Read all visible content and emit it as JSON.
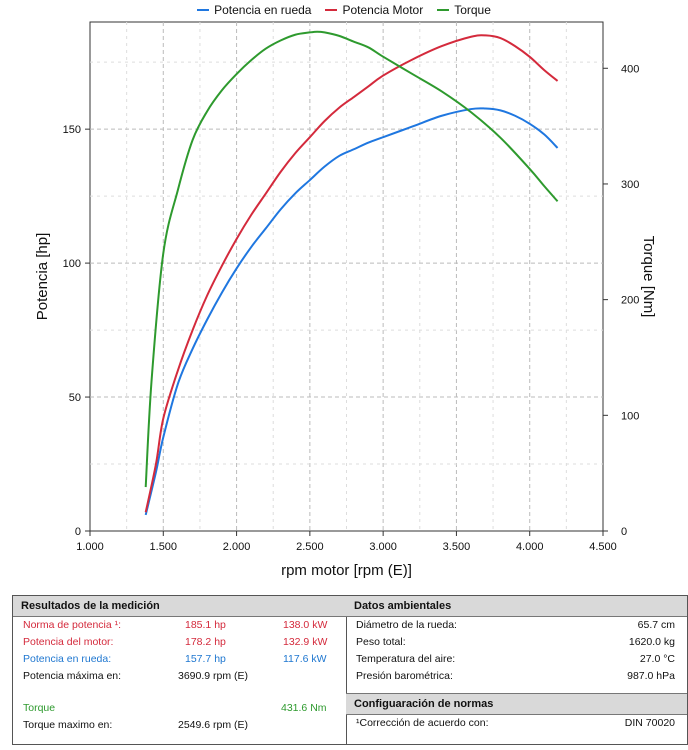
{
  "legend": [
    {
      "label": "Potencia en rueda",
      "color": "#1f77e0"
    },
    {
      "label": "Potencia Motor",
      "color": "#d42a3c"
    },
    {
      "label": "Torque",
      "color": "#2e9a2e"
    }
  ],
  "chart_data": {
    "type": "line",
    "xlabel": "rpm motor [rpm (E)]",
    "ylabel_left": "Potencia [hp]",
    "ylabel_right": "Torque [Nm]",
    "xlim": [
      1000,
      4500
    ],
    "ylim_left": [
      0,
      190
    ],
    "ylim_right": [
      0,
      440
    ],
    "x_ticks": [
      "1.000",
      "1.500",
      "2.000",
      "2.500",
      "3.000",
      "3.500",
      "4.000",
      "4.500"
    ],
    "x_tick_values": [
      1000,
      1500,
      2000,
      2500,
      3000,
      3500,
      4000,
      4500
    ],
    "y_left_ticks": [
      0,
      50,
      100,
      150
    ],
    "y_right_ticks": [
      0,
      100,
      200,
      300,
      400
    ],
    "grid": true,
    "series": [
      {
        "name": "Potencia en rueda",
        "axis": "left",
        "color": "#1f77e0",
        "x": [
          1380,
          1450,
          1500,
          1600,
          1700,
          1800,
          1900,
          2000,
          2100,
          2200,
          2300,
          2400,
          2500,
          2600,
          2700,
          2800,
          2900,
          3000,
          3200,
          3400,
          3600,
          3700,
          3800,
          3900,
          4000,
          4100,
          4190
        ],
        "y": [
          6,
          22,
          35,
          55,
          68,
          79,
          89,
          98,
          106,
          113,
          120,
          126,
          131,
          136,
          140,
          142.5,
          145,
          147,
          151,
          155,
          157.5,
          157.7,
          157,
          155,
          152,
          148,
          143
        ]
      },
      {
        "name": "Potencia Motor",
        "axis": "left",
        "color": "#d42a3c",
        "x": [
          1380,
          1450,
          1500,
          1600,
          1700,
          1800,
          1900,
          2000,
          2100,
          2200,
          2300,
          2400,
          2500,
          2600,
          2700,
          2800,
          2900,
          3000,
          3200,
          3400,
          3600,
          3700,
          3800,
          3900,
          4000,
          4100,
          4190
        ],
        "y": [
          7,
          25,
          42,
          60,
          75,
          88,
          99,
          109,
          118,
          126,
          134,
          141,
          147,
          153,
          158,
          162,
          166,
          170,
          176,
          181,
          184.5,
          185,
          184,
          181,
          177,
          172,
          168
        ]
      },
      {
        "name": "Torque",
        "axis": "right",
        "color": "#2e9a2e",
        "x": [
          1380,
          1420,
          1500,
          1600,
          1700,
          1800,
          1900,
          2000,
          2100,
          2200,
          2300,
          2400,
          2500,
          2550,
          2600,
          2700,
          2800,
          2900,
          3000,
          3200,
          3400,
          3600,
          3800,
          4000,
          4100,
          4190
        ],
        "y": [
          38,
          130,
          240,
          295,
          338,
          363,
          381,
          395,
          407,
          417,
          424,
          429,
          431,
          431.6,
          431,
          428,
          423,
          418,
          410,
          395,
          380,
          362,
          340,
          313,
          298,
          285
        ]
      }
    ]
  },
  "results": {
    "title": "Resultados de la medición",
    "rows": [
      {
        "label": "Norma de potencia ¹:",
        "v1": "185.1 hp",
        "v2": "138.0 kW",
        "color": "red"
      },
      {
        "label": "Potencia del motor:",
        "v1": "178.2 hp",
        "v2": "132.9 kW",
        "color": "red"
      },
      {
        "label": "Potencia en rueda:",
        "v1": "157.7 hp",
        "v2": "117.6 kW",
        "color": "blue"
      },
      {
        "label": "Potencia máxima en:",
        "v1": "3690.9 rpm (E)",
        "v2": "",
        "color": "black"
      },
      {
        "label": "Torque",
        "v1": "",
        "v2": "431.6 Nm",
        "color": "green"
      },
      {
        "label": "Torque maximo en:",
        "v1": "2549.6 rpm (E)",
        "v2": "",
        "color": "black"
      }
    ]
  },
  "ambient": {
    "title": "Datos ambientales",
    "rows": [
      {
        "label": "Diámetro de la rueda:",
        "value": "65.7 cm"
      },
      {
        "label": "Peso total:",
        "value": "1620.0 kg"
      },
      {
        "label": "Temperatura del aire:",
        "value": "27.0 °C"
      },
      {
        "label": "Presión barométrica:",
        "value": "987.0 hPa"
      }
    ]
  },
  "norms": {
    "title": "Configuaración de normas",
    "label": "¹Corrección de acuerdo con:",
    "value": "DIN 70020"
  }
}
